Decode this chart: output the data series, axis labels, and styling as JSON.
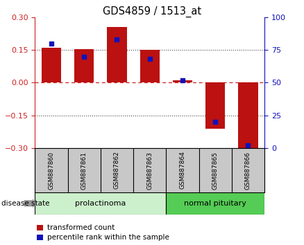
{
  "title": "GDS4859 / 1513_at",
  "categories": [
    "GSM887860",
    "GSM887861",
    "GSM887862",
    "GSM887863",
    "GSM887864",
    "GSM887865",
    "GSM887866"
  ],
  "red_values": [
    0.16,
    0.155,
    0.255,
    0.15,
    0.01,
    -0.21,
    -0.305
  ],
  "blue_values_pct": [
    80,
    70,
    83,
    68,
    52,
    20,
    2
  ],
  "ylim": [
    -0.3,
    0.3
  ],
  "y_ticks_left": [
    -0.3,
    -0.15,
    0,
    0.15,
    0.3
  ],
  "y_ticks_right": [
    0,
    25,
    50,
    75,
    100
  ],
  "bar_color": "#bb1111",
  "dot_color": "#1111bb",
  "group1_label": "prolactinoma",
  "group2_label": "normal pituitary",
  "group1_indices": [
    0,
    1,
    2,
    3
  ],
  "group2_indices": [
    4,
    5,
    6
  ],
  "disease_state_label": "disease state",
  "legend_red": "transformed count",
  "legend_blue": "percentile rank within the sample",
  "bar_width": 0.6,
  "group1_color_light": "#ccf0cc",
  "group1_color_dark": "#ccf0cc",
  "group2_color": "#55cc55",
  "header_bg": "#c8c8c8"
}
